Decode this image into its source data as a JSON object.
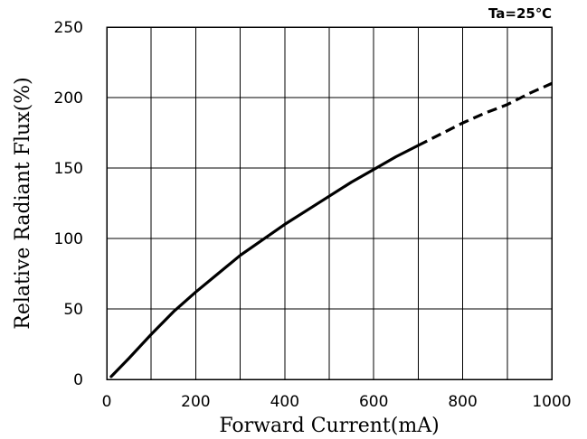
{
  "chart_data": {
    "type": "line",
    "annotation": "Ta=25℃",
    "xlabel": "Forward Current(mA)",
    "ylabel": "Relative Radiant Flux(%)",
    "xlim": [
      0,
      1000
    ],
    "ylim": [
      0,
      250
    ],
    "xticks": [
      0,
      200,
      400,
      600,
      800,
      1000
    ],
    "yticks": [
      0,
      50,
      100,
      150,
      200,
      250
    ],
    "grid": true,
    "series": [
      {
        "line_style": "solid",
        "color": "#000000",
        "x": [
          10,
          50,
          100,
          150,
          200,
          250,
          300,
          350,
          400,
          450,
          500,
          550,
          600,
          650,
          700
        ],
        "y": [
          2,
          15,
          32,
          48,
          62,
          75,
          88,
          99,
          110,
          120,
          130,
          140,
          149,
          158,
          166
        ]
      },
      {
        "line_style": "dashed",
        "color": "#000000",
        "x": [
          700,
          750,
          800,
          850,
          900,
          950,
          1000
        ],
        "y": [
          166,
          174,
          182,
          189,
          195,
          203,
          210
        ]
      }
    ]
  }
}
